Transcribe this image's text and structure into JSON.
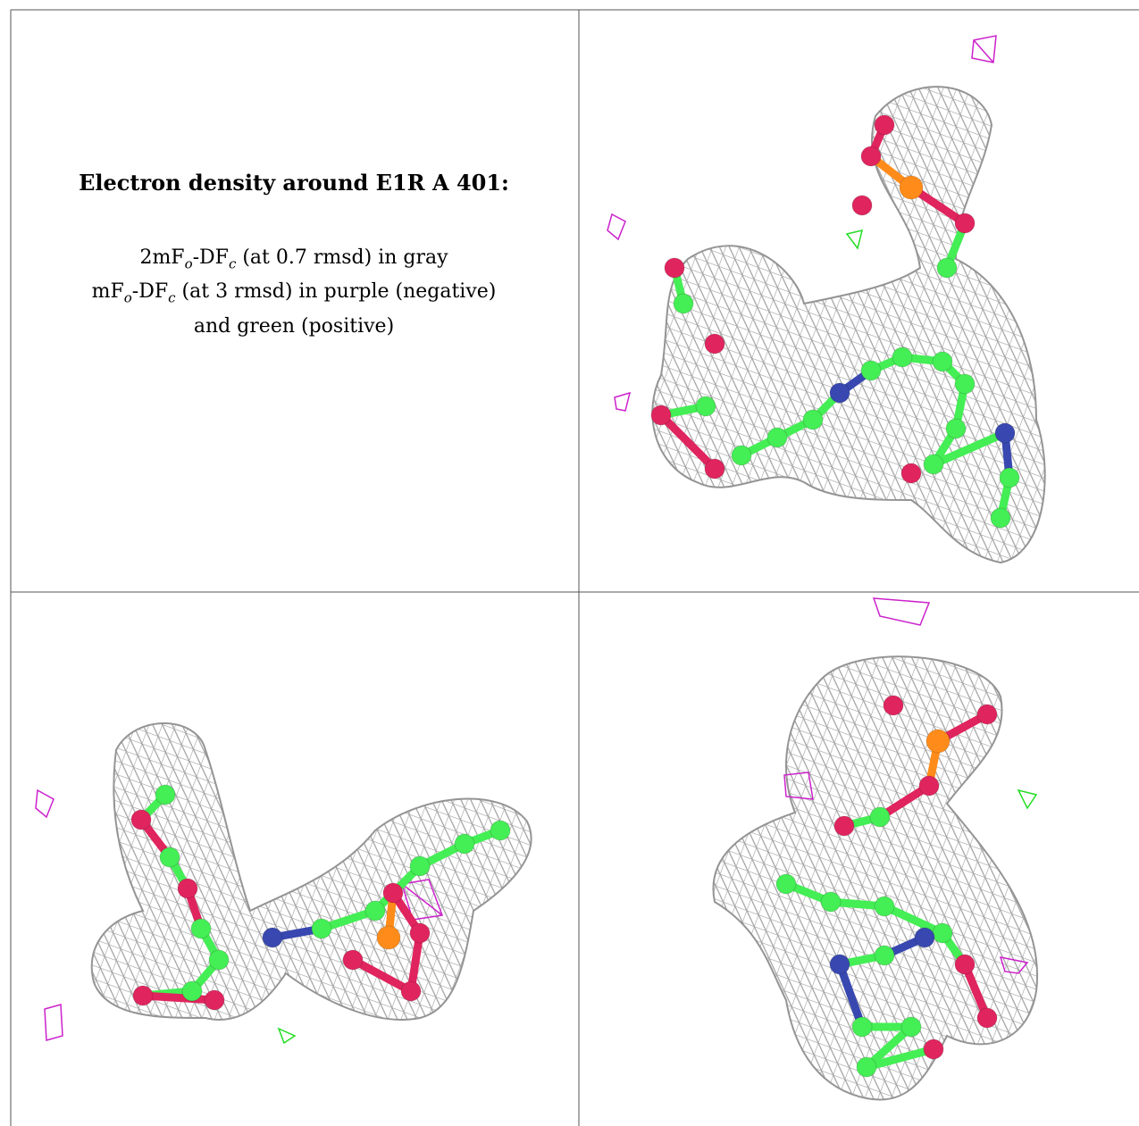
{
  "caption": {
    "title": "Electron density around E1R A 401:",
    "line1_main": "2mF",
    "line1_sub1": "o",
    "line1_mid": "-DF",
    "line1_sub2": "c",
    "line1_rest": " (at 0.7 rmsd) in gray",
    "line2_main": "mF",
    "line2_sub1": "o",
    "line2_mid": "-DF",
    "line2_sub2": "c",
    "line2_rest": " (at 3 rmsd) in purple (negative)",
    "line3": "and green (positive)"
  },
  "colors": {
    "mesh_2fofc": "#8f8f8f",
    "mesh_negative": "#cc22cc",
    "mesh_positive": "#22dd22",
    "carbon": "#44ee55",
    "oxygen": "#e0245e",
    "nitrogen": "#3848b0",
    "phosphorus": "#ff8c1a",
    "frame": "#555555"
  },
  "panels": [
    {
      "name": "view-top-right",
      "atoms": [
        [
          "C",
          230,
          510
        ],
        [
          "C",
          270,
          490
        ],
        [
          "C",
          310,
          470
        ],
        [
          "N",
          340,
          440
        ],
        [
          "C",
          375,
          415
        ],
        [
          "C",
          410,
          400
        ],
        [
          "C",
          455,
          405
        ],
        [
          "C",
          480,
          430
        ],
        [
          "C",
          470,
          480
        ],
        [
          "C",
          445,
          520
        ],
        [
          "N",
          525,
          485
        ],
        [
          "C",
          530,
          535
        ],
        [
          "C",
          520,
          580
        ],
        [
          "O",
          420,
          530
        ],
        [
          "C",
          190,
          455
        ],
        [
          "O",
          140,
          465
        ],
        [
          "O",
          200,
          525
        ],
        [
          "C",
          165,
          340
        ],
        [
          "O",
          155,
          300
        ],
        [
          "O",
          200,
          385
        ],
        [
          "C",
          460,
          300
        ],
        [
          "O",
          480,
          250
        ],
        [
          "P",
          420,
          210
        ],
        [
          "O",
          375,
          175
        ],
        [
          "O",
          390,
          140
        ],
        [
          "O",
          365,
          230
        ]
      ]
    },
    {
      "name": "view-bottom-left",
      "atoms": [
        [
          "C",
          185,
          890
        ],
        [
          "O",
          158,
          918
        ],
        [
          "C",
          190,
          960
        ],
        [
          "O",
          210,
          995
        ],
        [
          "C",
          225,
          1040
        ],
        [
          "C",
          245,
          1075
        ],
        [
          "C",
          215,
          1110
        ],
        [
          "O",
          160,
          1115
        ],
        [
          "O",
          240,
          1120
        ],
        [
          "N",
          305,
          1050
        ],
        [
          "C",
          360,
          1040
        ],
        [
          "C",
          420,
          1020
        ],
        [
          "C",
          470,
          970
        ],
        [
          "C",
          520,
          945
        ],
        [
          "C",
          560,
          930
        ],
        [
          "P",
          435,
          1050
        ],
        [
          "O",
          440,
          1000
        ],
        [
          "O",
          470,
          1045
        ],
        [
          "O",
          460,
          1110
        ],
        [
          "O",
          395,
          1075
        ]
      ]
    },
    {
      "name": "view-bottom-right",
      "atoms": [
        [
          "O",
          1000,
          790
        ],
        [
          "O",
          1105,
          800
        ],
        [
          "P",
          1050,
          830
        ],
        [
          "O",
          1040,
          880
        ],
        [
          "C",
          985,
          915
        ],
        [
          "O",
          945,
          925
        ],
        [
          "C",
          880,
          990
        ],
        [
          "C",
          930,
          1010
        ],
        [
          "C",
          990,
          1015
        ],
        [
          "C",
          1055,
          1045
        ],
        [
          "O",
          1080,
          1080
        ],
        [
          "O",
          1105,
          1140
        ],
        [
          "N",
          1035,
          1050
        ],
        [
          "C",
          990,
          1070
        ],
        [
          "N",
          940,
          1080
        ],
        [
          "C",
          965,
          1150
        ],
        [
          "C",
          1020,
          1150
        ],
        [
          "C",
          970,
          1195
        ],
        [
          "O",
          1045,
          1175
        ]
      ]
    }
  ]
}
